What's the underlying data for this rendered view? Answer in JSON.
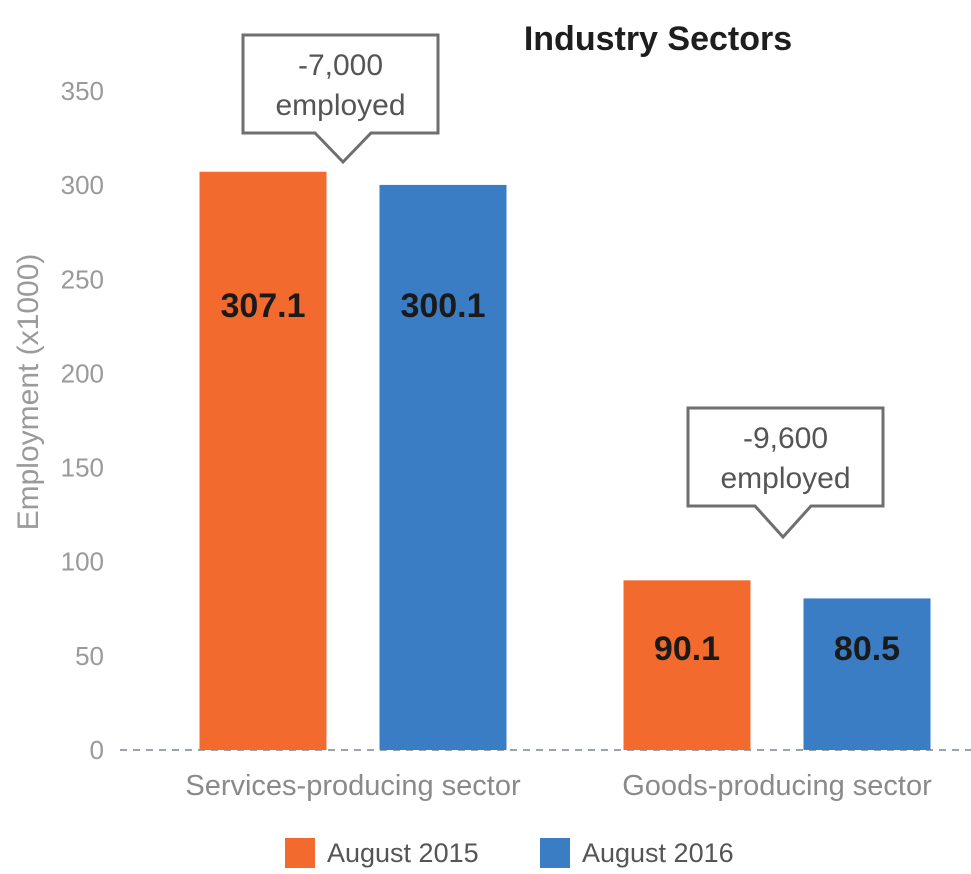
{
  "chart_data": {
    "type": "bar",
    "title": "Industry Sectors",
    "xlabel": "",
    "ylabel": "Employment (x1000)",
    "ylim": [
      0,
      350
    ],
    "yticks": [
      0,
      50,
      100,
      150,
      200,
      250,
      300,
      350
    ],
    "categories": [
      "Services-producing sector",
      "Goods-producing sector"
    ],
    "series": [
      {
        "name": "August 2015",
        "color": "#f26a2e",
        "values": [
          307.1,
          90.1
        ]
      },
      {
        "name": "August 2016",
        "color": "#3b7dc4",
        "values": [
          300.1,
          80.5
        ]
      }
    ],
    "data_labels": [
      [
        "307.1",
        "90.1"
      ],
      [
        "300.1",
        "80.5"
      ]
    ],
    "annotations": [
      {
        "category": "Services-producing sector",
        "line1": "-7,000",
        "line2": "employed"
      },
      {
        "category": "Goods-producing sector",
        "line1": "-9,600",
        "line2": "employed"
      }
    ],
    "grid": false,
    "legend": "bottom"
  }
}
